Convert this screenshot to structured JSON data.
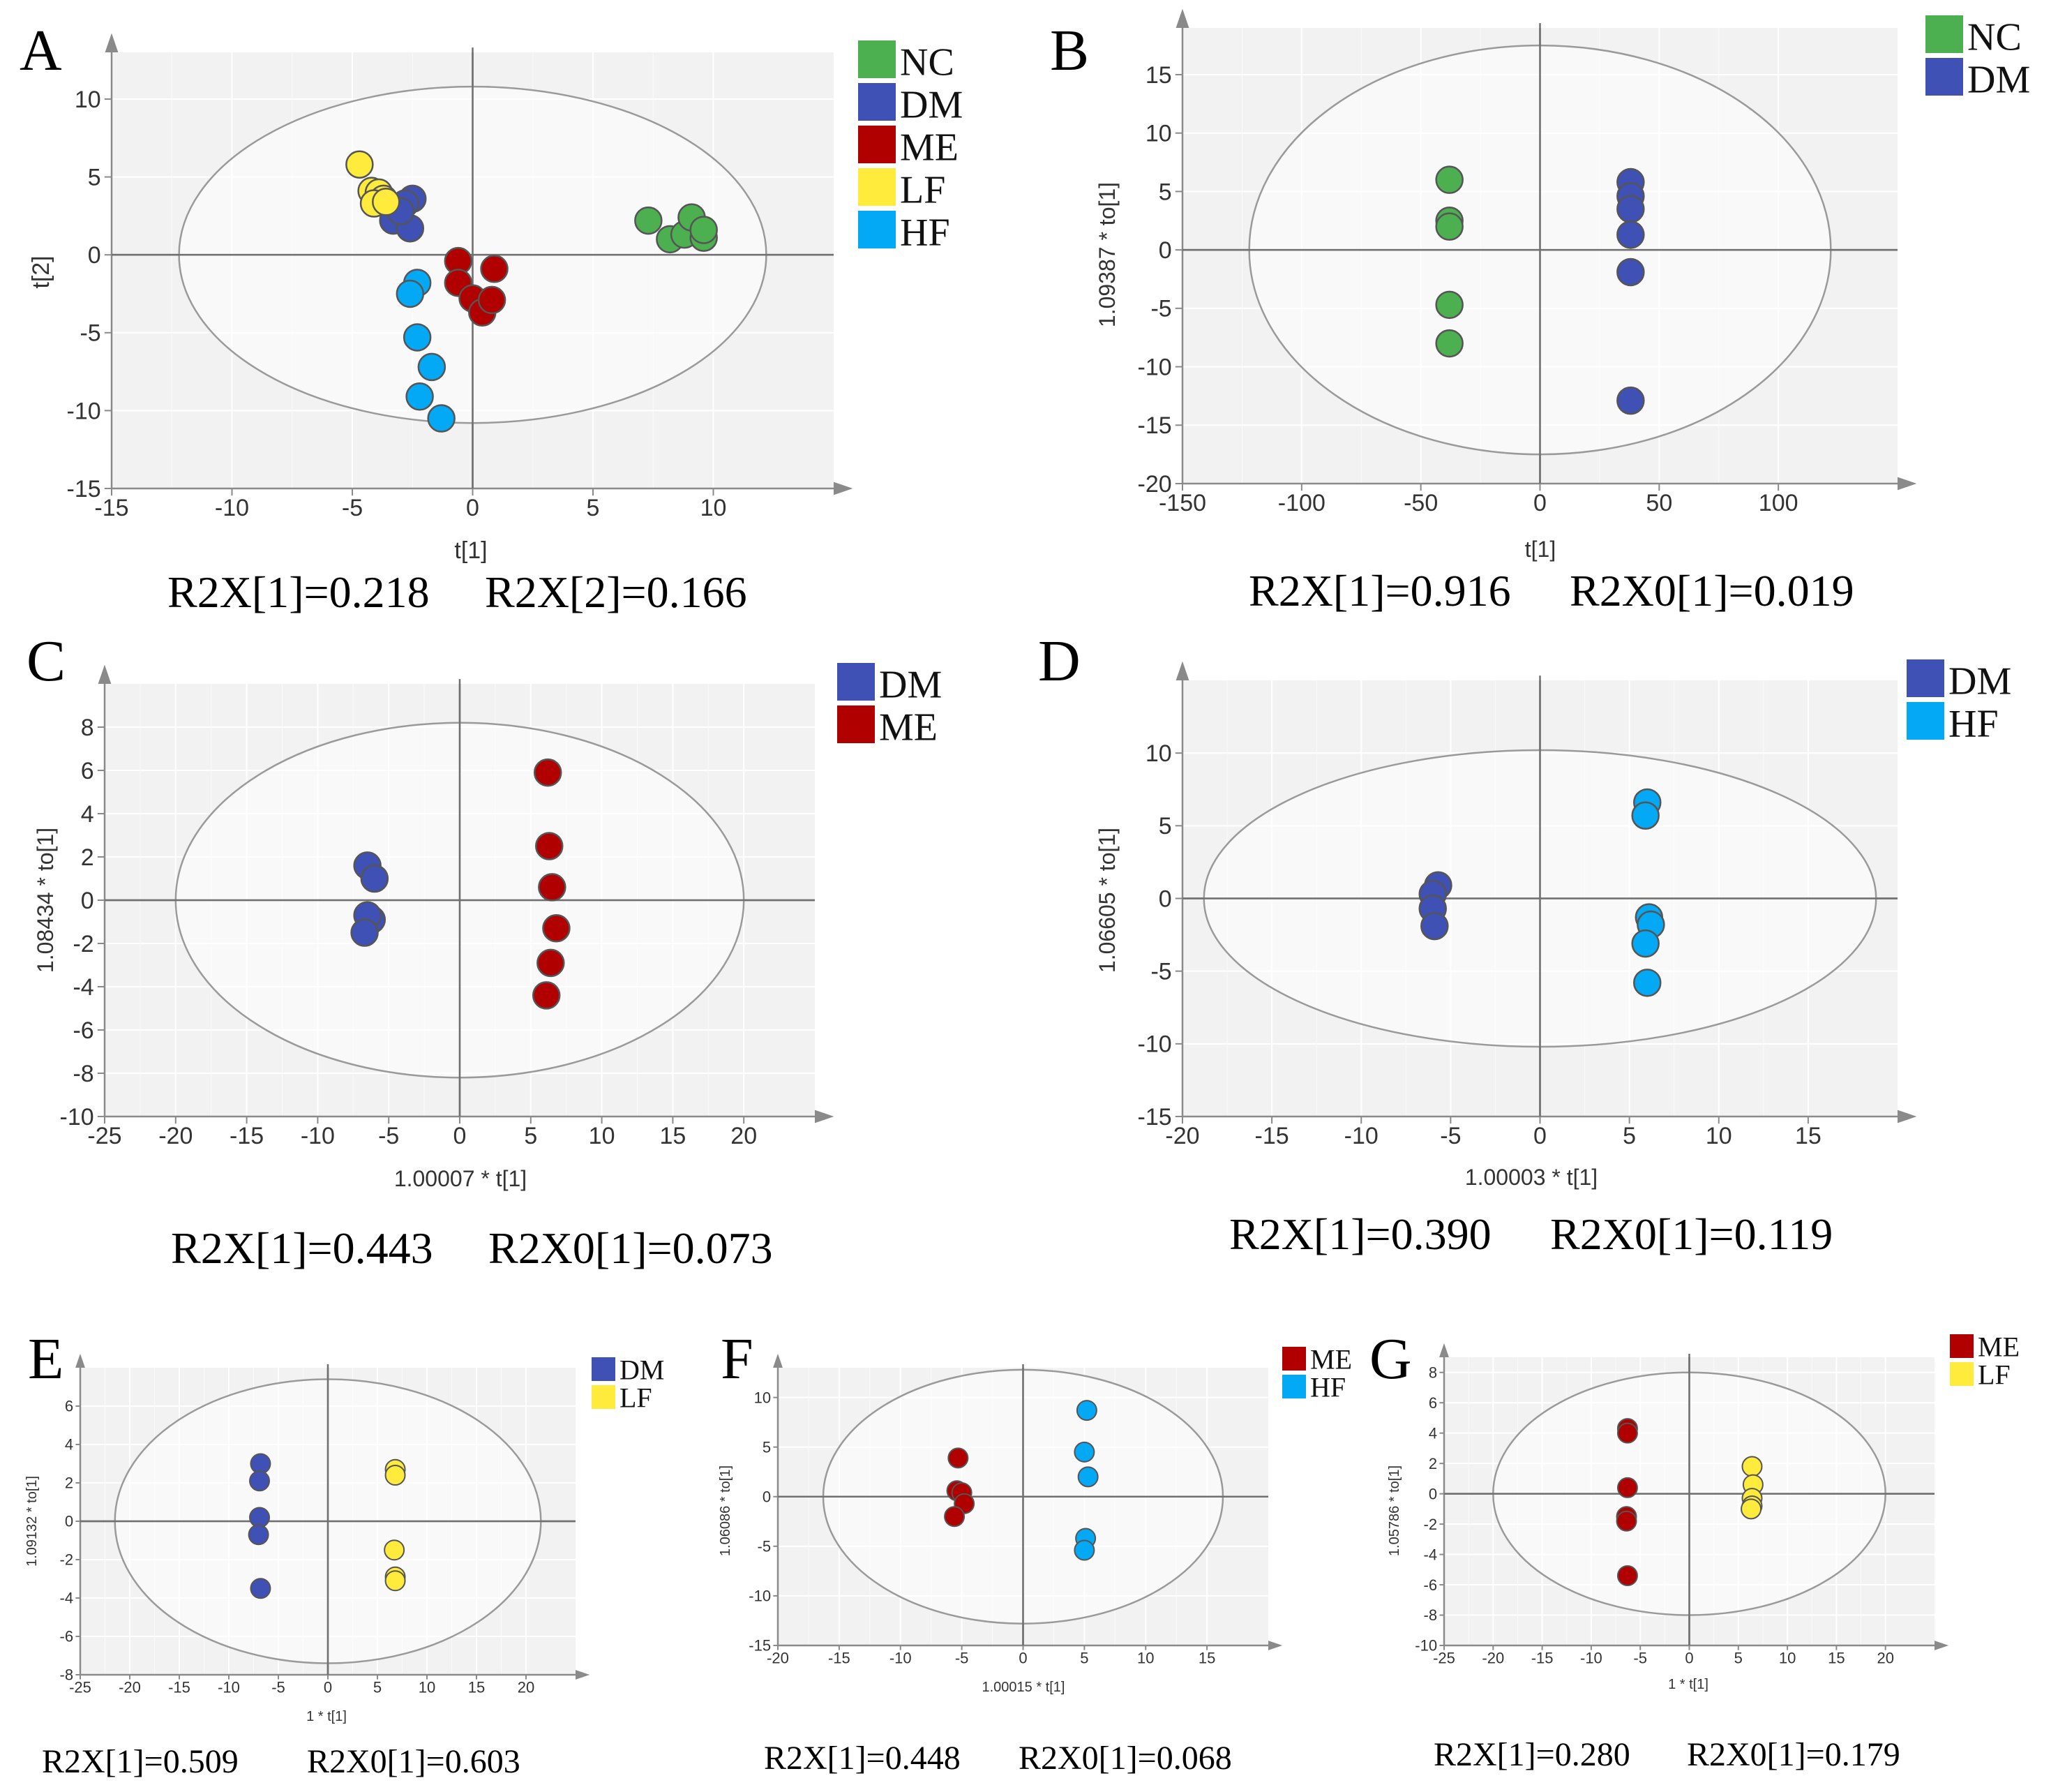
{
  "figure": {
    "panels": [
      "A",
      "B",
      "C",
      "D",
      "E",
      "F",
      "G"
    ]
  },
  "chart_data": [
    {
      "panel": "A",
      "type": "scatter",
      "title": "",
      "xlabel": "t[1]",
      "ylabel": "t[2]",
      "xlim": [
        -15,
        15
      ],
      "ylim": [
        -15,
        13
      ],
      "xticks": [
        -15,
        -10,
        -5,
        0,
        5,
        10
      ],
      "yticks": [
        -15,
        -10,
        -5,
        0,
        5,
        10
      ],
      "grid": true,
      "ellipse": {
        "rx": 12.2,
        "ry": 10.8
      },
      "legend": [
        {
          "label": "NC",
          "color": "#4caf50"
        },
        {
          "label": "DM",
          "color": "#3f51b5"
        },
        {
          "label": "ME",
          "color": "#b00000"
        },
        {
          "label": "LF",
          "color": "#ffeb3b"
        },
        {
          "label": "HF",
          "color": "#03a9f4"
        }
      ],
      "series": [
        {
          "name": "NC",
          "color": "#4caf50",
          "points": [
            [
              7.3,
              2.2
            ],
            [
              8.2,
              1.0
            ],
            [
              8.8,
              1.3
            ],
            [
              9.1,
              2.4
            ],
            [
              9.6,
              1.1
            ],
            [
              9.6,
              1.6
            ]
          ]
        },
        {
          "name": "DM",
          "color": "#3f51b5",
          "points": [
            [
              -3.3,
              2.2
            ],
            [
              -2.6,
              1.7
            ],
            [
              -2.5,
              3.6
            ],
            [
              -2.8,
              3.3
            ],
            [
              -3.0,
              2.8
            ]
          ]
        },
        {
          "name": "ME",
          "color": "#b00000",
          "points": [
            [
              -0.6,
              -0.4
            ],
            [
              -0.6,
              -1.8
            ],
            [
              0.0,
              -2.8
            ],
            [
              0.4,
              -3.7
            ],
            [
              0.8,
              -2.9
            ],
            [
              0.9,
              -0.9
            ]
          ]
        },
        {
          "name": "LF",
          "color": "#ffeb3b",
          "points": [
            [
              -4.7,
              5.8
            ],
            [
              -4.2,
              4.1
            ],
            [
              -3.9,
              4.0
            ],
            [
              -3.7,
              3.6
            ],
            [
              -4.1,
              3.3
            ],
            [
              -3.6,
              3.4
            ]
          ]
        },
        {
          "name": "HF",
          "color": "#03a9f4",
          "points": [
            [
              -2.3,
              -1.8
            ],
            [
              -2.6,
              -2.5
            ],
            [
              -2.3,
              -5.3
            ],
            [
              -1.7,
              -7.2
            ],
            [
              -2.2,
              -9.1
            ],
            [
              -1.3,
              -10.5
            ]
          ]
        }
      ],
      "metrics": [
        "R2X[1]=0.218",
        "R2X[2]=0.166"
      ]
    },
    {
      "panel": "B",
      "type": "scatter",
      "title": "",
      "xlabel": "t[1]",
      "ylabel": "1.09387 * to[1]",
      "xlim": [
        -150,
        150
      ],
      "ylim": [
        -20,
        19
      ],
      "xticks": [
        -150,
        -100,
        -50,
        0,
        50,
        100
      ],
      "yticks": [
        -20,
        -15,
        -10,
        -5,
        0,
        5,
        10,
        15
      ],
      "grid": true,
      "ellipse": {
        "rx": 122,
        "ry": 17.5
      },
      "legend": [
        {
          "label": "NC",
          "color": "#4caf50"
        },
        {
          "label": "DM",
          "color": "#3f51b5"
        }
      ],
      "series": [
        {
          "name": "NC",
          "color": "#4caf50",
          "points": [
            [
              -38,
              6.0
            ],
            [
              -38,
              2.5
            ],
            [
              -38,
              2.0
            ],
            [
              -38,
              -4.7
            ],
            [
              -38,
              -8.0
            ]
          ]
        },
        {
          "name": "DM",
          "color": "#3f51b5",
          "points": [
            [
              38,
              5.8
            ],
            [
              38,
              4.6
            ],
            [
              38,
              3.5
            ],
            [
              38,
              1.3
            ],
            [
              38,
              -1.9
            ],
            [
              38,
              -12.9
            ]
          ]
        }
      ],
      "metrics": [
        "R2X[1]=0.916",
        "R2X0[1]=0.019"
      ]
    },
    {
      "panel": "C",
      "type": "scatter",
      "title": "",
      "xlabel": "1.00007 * t[1]",
      "ylabel": "1.08434 * to[1]",
      "xlim": [
        -25,
        25
      ],
      "ylim": [
        -10,
        10
      ],
      "xticks": [
        -25,
        -20,
        -15,
        -10,
        -5,
        0,
        5,
        10,
        15,
        20
      ],
      "yticks": [
        -10,
        -8,
        -6,
        -4,
        -2,
        0,
        2,
        4,
        6,
        8
      ],
      "grid": true,
      "ellipse": {
        "rx": 20,
        "ry": 8.2
      },
      "legend": [
        {
          "label": "DM",
          "color": "#3f51b5"
        },
        {
          "label": "ME",
          "color": "#b00000"
        }
      ],
      "series": [
        {
          "name": "DM",
          "color": "#3f51b5",
          "points": [
            [
              -6.5,
              1.6
            ],
            [
              -6.0,
              1.0
            ],
            [
              -6.2,
              -0.9
            ],
            [
              -6.5,
              -0.7
            ],
            [
              -6.7,
              -1.5
            ]
          ]
        },
        {
          "name": "ME",
          "color": "#b00000",
          "points": [
            [
              6.2,
              5.9
            ],
            [
              6.3,
              2.5
            ],
            [
              6.5,
              0.6
            ],
            [
              6.8,
              -1.3
            ],
            [
              6.4,
              -2.9
            ],
            [
              6.1,
              -4.4
            ]
          ]
        }
      ],
      "metrics": [
        "R2X[1]=0.443",
        "R2X0[1]=0.073"
      ]
    },
    {
      "panel": "D",
      "type": "scatter",
      "title": "",
      "xlabel": "1.00003 * t[1]",
      "ylabel": "1.06605 * to[1]",
      "xlim": [
        -20,
        20
      ],
      "ylim": [
        -15,
        15
      ],
      "xticks": [
        -20,
        -15,
        -10,
        -5,
        0,
        5,
        10,
        15
      ],
      "yticks": [
        -15,
        -10,
        -5,
        0,
        5,
        10
      ],
      "grid": true,
      "ellipse": {
        "rx": 18.8,
        "ry": 10.2
      },
      "legend": [
        {
          "label": "DM",
          "color": "#3f51b5"
        },
        {
          "label": "HF",
          "color": "#03a9f4"
        }
      ],
      "series": [
        {
          "name": "DM",
          "color": "#3f51b5",
          "points": [
            [
              -5.7,
              0.9
            ],
            [
              -6.0,
              0.3
            ],
            [
              -6.0,
              -0.7
            ],
            [
              -5.9,
              -1.9
            ]
          ]
        },
        {
          "name": "HF",
          "color": "#03a9f4",
          "points": [
            [
              6.0,
              6.6
            ],
            [
              5.9,
              5.7
            ],
            [
              6.1,
              -1.3
            ],
            [
              6.2,
              -1.8
            ],
            [
              5.9,
              -3.1
            ],
            [
              6.0,
              -5.8
            ]
          ]
        }
      ],
      "metrics": [
        "R2X[1]=0.390",
        "R2X0[1]=0.119"
      ]
    },
    {
      "panel": "E",
      "type": "scatter",
      "title": "",
      "xlabel": "1 * t[1]",
      "ylabel": "1.09132 * to[1]",
      "xlim": [
        -25,
        25
      ],
      "ylim": [
        -8,
        8
      ],
      "xticks": [
        -25,
        -20,
        -15,
        -10,
        -5,
        0,
        5,
        10,
        15,
        20
      ],
      "yticks": [
        -8,
        -6,
        -4,
        -2,
        0,
        2,
        4,
        6
      ],
      "grid": true,
      "ellipse": {
        "rx": 21.5,
        "ry": 7.4
      },
      "legend": [
        {
          "label": "DM",
          "color": "#3f51b5"
        },
        {
          "label": "LF",
          "color": "#ffeb3b"
        }
      ],
      "series": [
        {
          "name": "DM",
          "color": "#3f51b5",
          "points": [
            [
              -6.8,
              3.0
            ],
            [
              -6.9,
              2.1
            ],
            [
              -6.9,
              0.2
            ],
            [
              -7.0,
              -0.7
            ],
            [
              -6.8,
              -3.5
            ]
          ]
        },
        {
          "name": "LF",
          "color": "#ffeb3b",
          "points": [
            [
              6.8,
              2.7
            ],
            [
              6.8,
              2.4
            ],
            [
              6.7,
              -1.5
            ],
            [
              6.8,
              -2.9
            ],
            [
              6.8,
              -3.1
            ]
          ]
        }
      ],
      "metrics": [
        "R2X[1]=0.509",
        "R2X0[1]=0.603"
      ]
    },
    {
      "panel": "F",
      "type": "scatter",
      "title": "",
      "xlabel": "1.00015 * t[1]",
      "ylabel": "1.06086 * to[1]",
      "xlim": [
        -20,
        20
      ],
      "ylim": [
        -15,
        13
      ],
      "xticks": [
        -20,
        -15,
        -10,
        -5,
        0,
        5,
        10,
        15
      ],
      "yticks": [
        -15,
        -10,
        -5,
        0,
        5,
        10
      ],
      "grid": true,
      "ellipse": {
        "rx": 16.3,
        "ry": 12.8
      },
      "legend": [
        {
          "label": "ME",
          "color": "#b00000"
        },
        {
          "label": "HF",
          "color": "#03a9f4"
        }
      ],
      "series": [
        {
          "name": "ME",
          "color": "#b00000",
          "points": [
            [
              -5.3,
              3.9
            ],
            [
              -5.4,
              0.6
            ],
            [
              -5.0,
              0.4
            ],
            [
              -4.8,
              -0.7
            ],
            [
              -5.6,
              -2.0
            ]
          ]
        },
        {
          "name": "HF",
          "color": "#03a9f4",
          "points": [
            [
              5.2,
              8.7
            ],
            [
              5.0,
              4.5
            ],
            [
              5.3,
              2.0
            ],
            [
              5.1,
              -4.2
            ],
            [
              5.0,
              -5.4
            ]
          ]
        }
      ],
      "metrics": [
        "R2X[1]=0.448",
        "R2X0[1]=0.068"
      ]
    },
    {
      "panel": "G",
      "type": "scatter",
      "title": "",
      "xlabel": "1 * t[1]",
      "ylabel": "1.05786 * to[1]",
      "xlim": [
        -25,
        25
      ],
      "ylim": [
        -10,
        9
      ],
      "xticks": [
        -25,
        -20,
        -15,
        -10,
        -5,
        0,
        5,
        10,
        15,
        20
      ],
      "yticks": [
        -10,
        -8,
        -6,
        -4,
        -2,
        0,
        2,
        4,
        6,
        8
      ],
      "grid": true,
      "ellipse": {
        "rx": 20,
        "ry": 8
      },
      "legend": [
        {
          "label": "ME",
          "color": "#b00000"
        },
        {
          "label": "LF",
          "color": "#ffeb3b"
        }
      ],
      "series": [
        {
          "name": "ME",
          "color": "#b00000",
          "points": [
            [
              -6.3,
              4.3
            ],
            [
              -6.3,
              4.0
            ],
            [
              -6.3,
              0.4
            ],
            [
              -6.4,
              -1.5
            ],
            [
              -6.4,
              -1.8
            ],
            [
              -6.3,
              -5.4
            ]
          ]
        },
        {
          "name": "LF",
          "color": "#ffeb3b",
          "points": [
            [
              6.4,
              1.8
            ],
            [
              6.5,
              0.6
            ],
            [
              6.4,
              -0.3
            ],
            [
              6.4,
              -0.8
            ],
            [
              6.3,
              -1.0
            ]
          ]
        }
      ],
      "metrics": [
        "R2X[1]=0.280",
        "R2X0[1]=0.179"
      ]
    }
  ]
}
